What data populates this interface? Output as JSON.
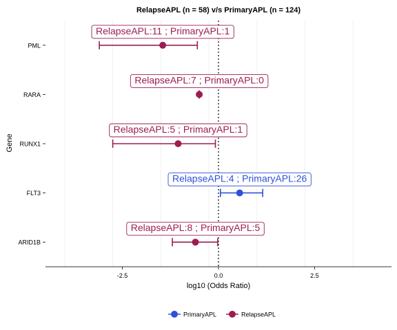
{
  "chart_data": {
    "type": "scatter",
    "subtype": "forest-plot",
    "title": "RelapseAPL (n = 58) v/s PrimaryAPL (n = 124)",
    "xlabel": "log10 (Odds Ratio)",
    "ylabel": "Gene",
    "xlim": [
      -4.5,
      4.5
    ],
    "x_ticks": [
      -2.5,
      0.0,
      2.5
    ],
    "x_tick_labels": [
      "-2.5",
      "0.0",
      "2.5"
    ],
    "reference_line_x": 0,
    "grid": "vertical-light",
    "legend_position": "bottom",
    "legend": [
      {
        "key": "PrimaryAPL",
        "label": "PrimaryAPL",
        "color": "#3050d8"
      },
      {
        "key": "RelapseAPL",
        "label": "RelapseAPL",
        "color": "#9b1d52"
      }
    ],
    "points": [
      {
        "gene": "PML",
        "estimate": -1.45,
        "ci_low": -3.1,
        "ci_high": -0.55,
        "group": "RelapseAPL",
        "label": "RelapseAPL:11 ; PrimaryAPL:1"
      },
      {
        "gene": "RARA",
        "estimate": -0.5,
        "ci_low": -0.5,
        "ci_high": -0.5,
        "group": "RelapseAPL",
        "label": "RelapseAPL:7 ; PrimaryAPL:0"
      },
      {
        "gene": "RUNX1",
        "estimate": -1.05,
        "ci_low": -2.75,
        "ci_high": -0.08,
        "group": "RelapseAPL",
        "label": "RelapseAPL:5 ; PrimaryAPL:1"
      },
      {
        "gene": "FLT3",
        "estimate": 0.55,
        "ci_low": 0.05,
        "ci_high": 1.15,
        "group": "PrimaryAPL",
        "label": "RelapseAPL:4 ; PrimaryAPL:26"
      },
      {
        "gene": "ARID1B",
        "estimate": -0.6,
        "ci_low": -1.2,
        "ci_high": -0.02,
        "group": "RelapseAPL",
        "label": "RelapseAPL:8 ; PrimaryAPL:5"
      }
    ]
  }
}
